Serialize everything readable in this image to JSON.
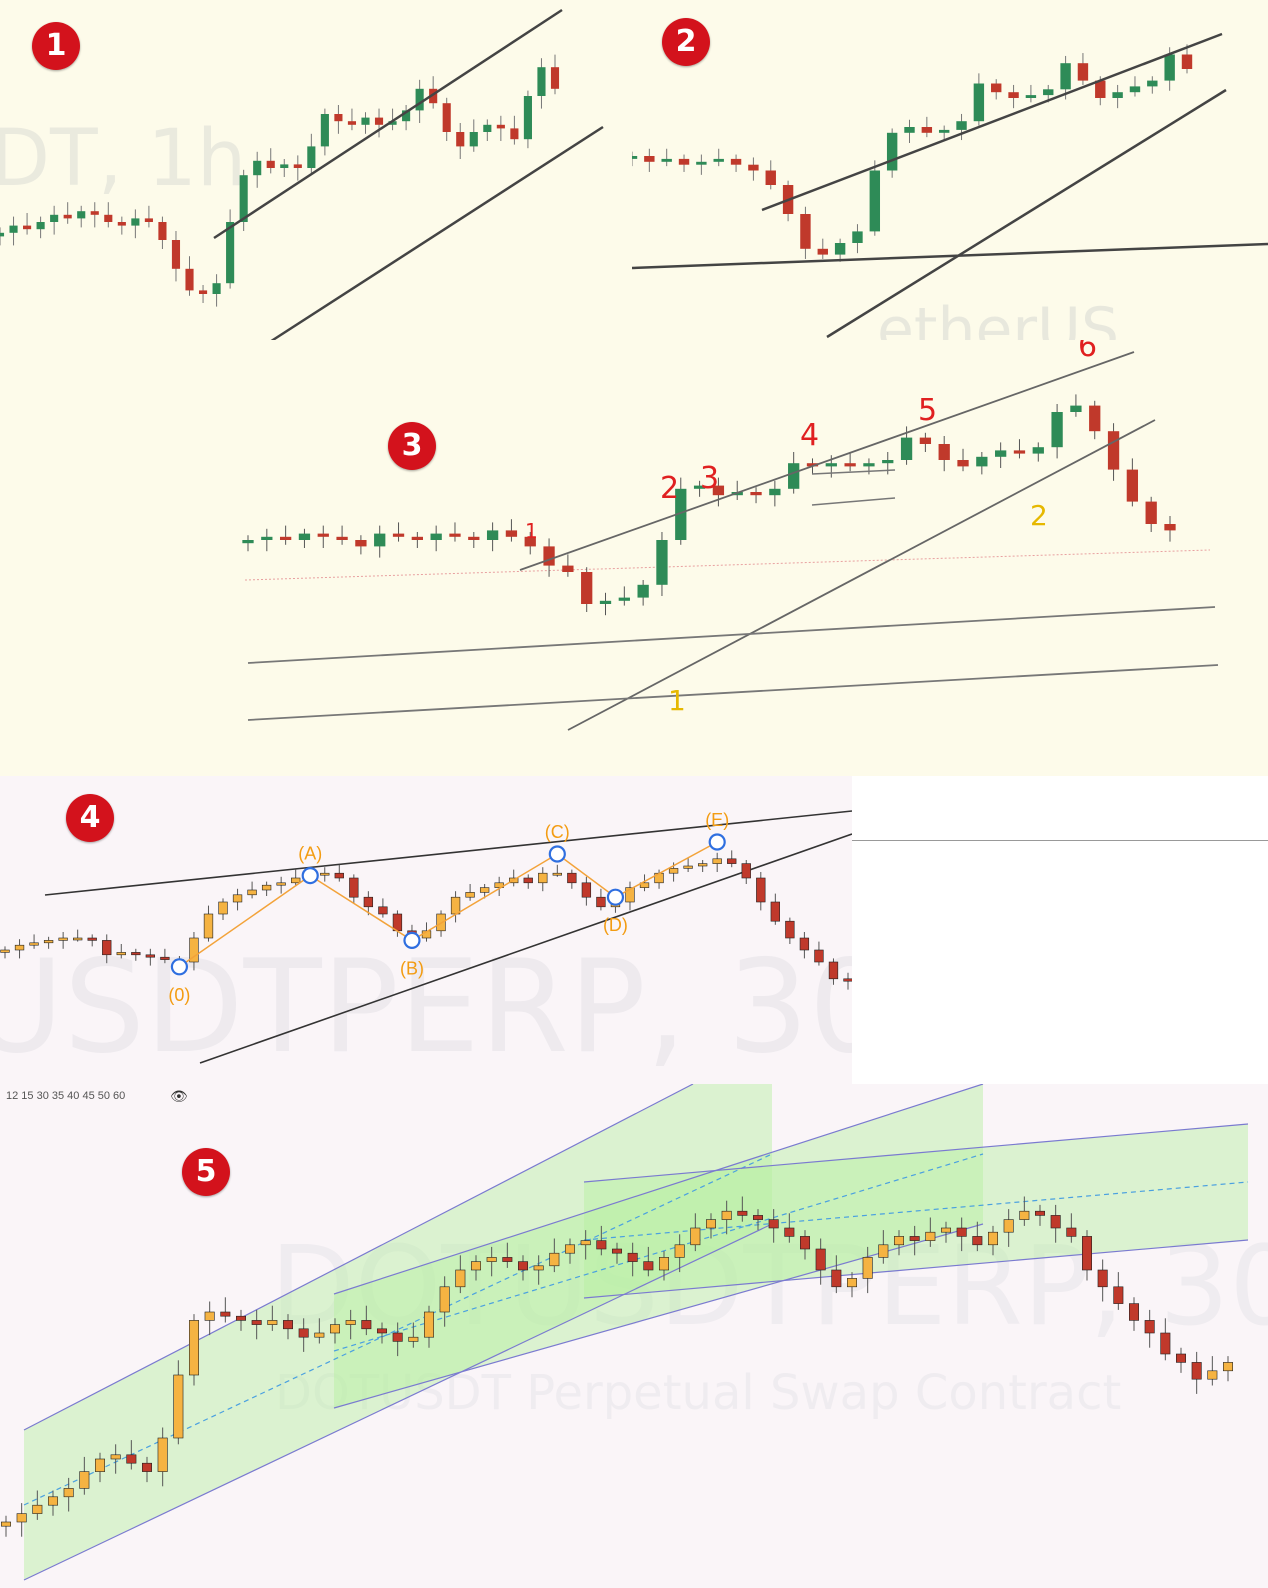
{
  "badges": [
    "1",
    "2",
    "3",
    "4",
    "5"
  ],
  "panel1": {
    "watermark": "DT, 1h"
  },
  "panel2": {
    "watermark": "etherUS"
  },
  "panel3": {
    "red_labels": [
      "1",
      "2",
      "3",
      "4",
      "5",
      "6"
    ],
    "yellow_labels": [
      "1",
      "2"
    ]
  },
  "panel4": {
    "watermark": "USDTPERP, 30",
    "points": [
      "(0)",
      "(A)",
      "(B)",
      "(C)",
      "(D)",
      "(E)"
    ],
    "ruler": "12 15 30 35 40 45 50 60"
  },
  "panel5": {
    "watermark": "DOTUSDTPERP, 30",
    "watermark_sub": "DOTUSDT Perpetual Swap Contract"
  },
  "colors": {
    "bull_green": "#2e8b57",
    "bear_red": "#c0392b",
    "bull_yellow": "#f5b342",
    "orange": "#f39c12",
    "circle_blue": "#2f6fe0",
    "channel_fill": "#b6f0a0",
    "badge_red": "#d3121c"
  },
  "chart_data": [
    {
      "type": "candlestick",
      "panel": 1,
      "pattern": "ascending channel",
      "closes": [
        52,
        54,
        53,
        55,
        57,
        56,
        58,
        57,
        55,
        54,
        56,
        55,
        50,
        42,
        36,
        35,
        38,
        55,
        68,
        72,
        70,
        71,
        70,
        76,
        85,
        83,
        82,
        84,
        82,
        83,
        86,
        92,
        88,
        80,
        76,
        80,
        82,
        81,
        78,
        90,
        98,
        92
      ],
      "lines": [
        "upper trendline",
        "lower trendline"
      ]
    },
    {
      "type": "candlestick",
      "panel": 2,
      "pattern": "rising wedge",
      "closes": [
        60,
        58,
        59,
        57,
        58,
        59,
        57,
        55,
        50,
        40,
        28,
        26,
        30,
        34,
        55,
        68,
        70,
        68,
        69,
        72,
        85,
        82,
        80,
        81,
        83,
        92,
        86,
        80,
        82,
        84,
        86,
        95,
        90
      ],
      "lines": [
        "upper trendline",
        "lower trendline",
        "horizontal support"
      ]
    },
    {
      "type": "candlestick",
      "panel": 3,
      "pattern": "ascending channel with swing labels",
      "closes": [
        50,
        51,
        50,
        52,
        51,
        50,
        48,
        52,
        51,
        50,
        52,
        51,
        50,
        53,
        51,
        48,
        42,
        40,
        30,
        31,
        32,
        36,
        50,
        66,
        67,
        64,
        65,
        64,
        66,
        74,
        73,
        74,
        73,
        74,
        75,
        82,
        80,
        75,
        73,
        76,
        78,
        77,
        79,
        90,
        92,
        84,
        72,
        62,
        55,
        53
      ],
      "labels": {
        "red": [
          "1",
          "2",
          "3",
          "4",
          "5",
          "6"
        ],
        "yellow": [
          "1",
          "2"
        ]
      }
    },
    {
      "type": "candlestick",
      "panel": 4,
      "pattern": "rising wedge with ABCDE waves",
      "closes": [
        40,
        42,
        43,
        44,
        45,
        45,
        44,
        38,
        39,
        38,
        37,
        36,
        35,
        45,
        55,
        60,
        63,
        65,
        67,
        68,
        70,
        72,
        72,
        70,
        62,
        58,
        55,
        48,
        45,
        48,
        55,
        62,
        64,
        66,
        68,
        70,
        68,
        72,
        72,
        68,
        62,
        58,
        60,
        66,
        68,
        72,
        74,
        75,
        76,
        78,
        76,
        70,
        60,
        52,
        45,
        40,
        35,
        28,
        27
      ],
      "waves": {
        "(0)": 33,
        "(A)": 71,
        "(B)": 44,
        "(C)": 80,
        "(D)": 62,
        "(E)": 85
      }
    },
    {
      "type": "candlestick",
      "panel": 5,
      "pattern": "successive ascending channels",
      "closes": [
        10,
        12,
        14,
        16,
        18,
        22,
        25,
        26,
        24,
        22,
        30,
        45,
        58,
        60,
        59,
        58,
        57,
        58,
        56,
        54,
        55,
        57,
        58,
        56,
        55,
        53,
        54,
        60,
        66,
        70,
        72,
        73,
        72,
        70,
        71,
        74,
        76,
        77,
        75,
        74,
        72,
        70,
        73,
        76,
        80,
        82,
        84,
        83,
        82,
        80,
        78,
        75,
        70,
        66,
        68,
        73,
        76,
        78,
        77,
        79,
        80,
        78,
        76,
        79,
        82,
        84,
        83,
        80,
        78,
        70,
        66,
        62,
        58,
        55,
        50,
        48,
        44,
        46,
        48
      ]
    }
  ]
}
